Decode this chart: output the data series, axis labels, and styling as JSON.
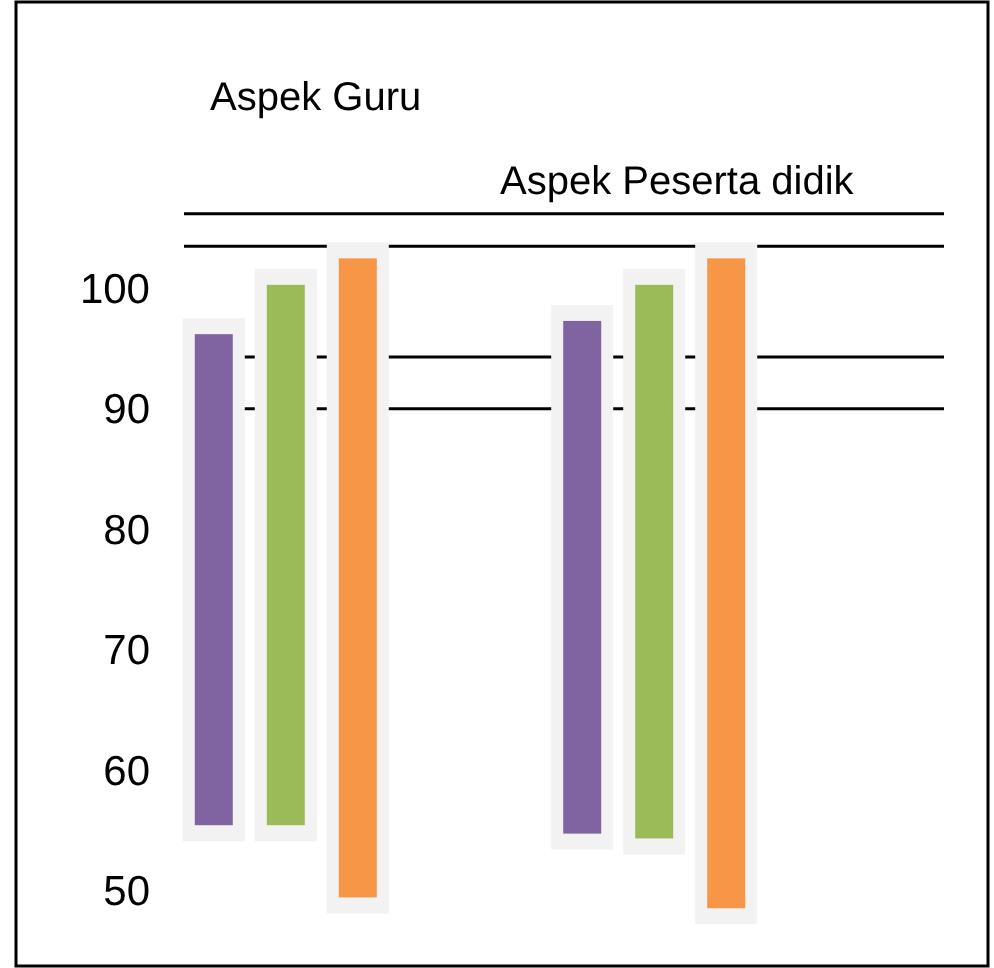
{
  "chart_data": {
    "type": "bar",
    "categories": [
      "Aspek Guru",
      "Aspek Peserta didik"
    ],
    "series": [
      {
        "color": "#8064a2",
        "base": [
          55.4,
          54.7
        ],
        "values": [
          40.8,
          42.6
        ]
      },
      {
        "color": "#9bbb59",
        "base": [
          55.4,
          54.3
        ],
        "values": [
          44.9,
          46.0
        ]
      },
      {
        "color": "#f79646",
        "base": [
          49.4,
          48.5
        ],
        "values": [
          53.1,
          54.0
        ]
      }
    ],
    "ylim": [
      43.7,
      123.8
    ],
    "yticks": [
      50,
      60,
      70,
      80,
      90,
      100
    ],
    "ref_lines": [
      {
        "axis": "y",
        "value": 106.2
      },
      {
        "axis": "y",
        "value": 103.5
      },
      {
        "axis": "y",
        "value": 94.3
      },
      {
        "axis": "y",
        "value": 90
      }
    ],
    "grid": false
  }
}
